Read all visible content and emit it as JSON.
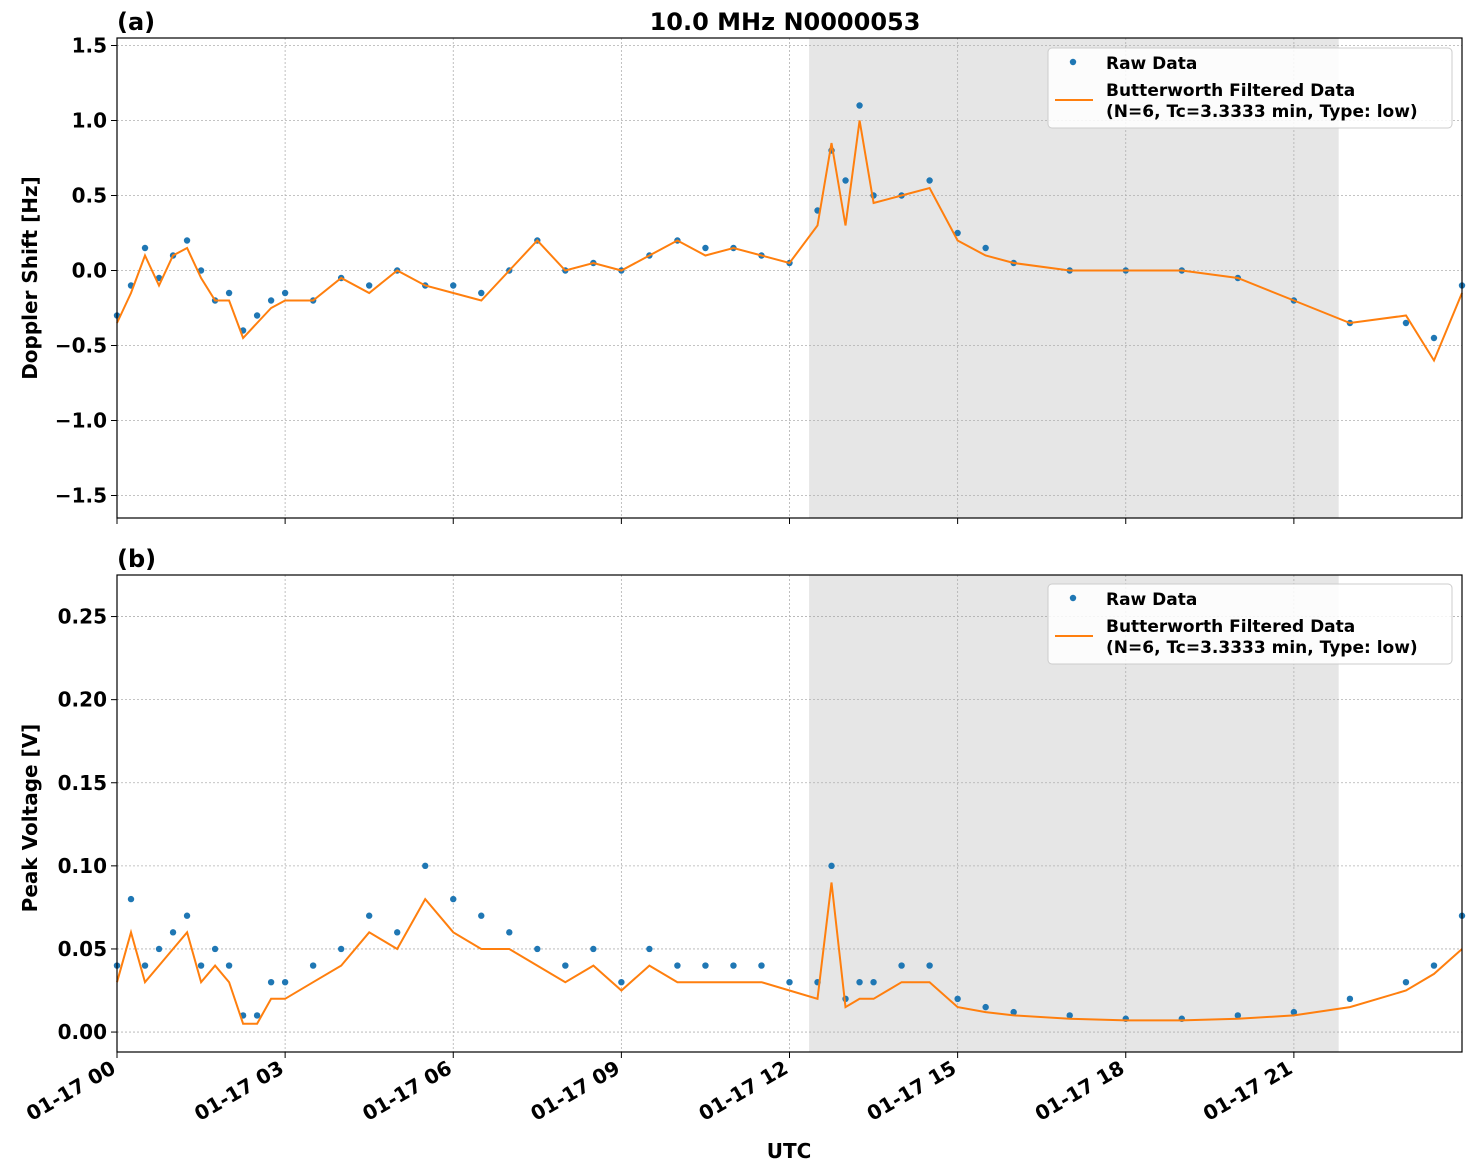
{
  "figure": {
    "title": "10.0 MHz N0000053",
    "xlabel": "UTC",
    "x_tick_labels": [
      "01-17 00",
      "01-17 03",
      "01-17 06",
      "01-17 09",
      "01-17 12",
      "01-17 15",
      "01-17 18",
      "01-17 21"
    ]
  },
  "panels": [
    {
      "label": "(a)",
      "ylabel": "Doppler Shift [Hz]",
      "y_tick_labels": [
        "1.5",
        "1.0",
        "0.5",
        "0.0",
        "−0.5",
        "−1.0",
        "−1.5"
      ],
      "legend": {
        "raw": "Raw Data",
        "filtered_line1": "Butterworth Filtered Data",
        "filtered_line2": "(N=6, Tc=3.3333 min, Type: low)"
      }
    },
    {
      "label": "(b)",
      "ylabel": "Peak Voltage [V]",
      "y_tick_labels": [
        "0.25",
        "0.20",
        "0.15",
        "0.10",
        "0.05",
        "0.00"
      ],
      "legend": {
        "raw": "Raw Data",
        "filtered_line1": "Butterworth Filtered Data",
        "filtered_line2": "(N=6, Tc=3.3333 min, Type: low)"
      }
    }
  ],
  "chart_data": [
    {
      "type": "scatter",
      "title": "10.0 MHz N0000053",
      "xlabel": "",
      "ylabel": "Doppler Shift [Hz]",
      "x_unit": "hours UTC on 01-17",
      "xlim": [
        0,
        24
      ],
      "ylim": [
        -1.65,
        1.55
      ],
      "grid": true,
      "legend_position": "top-right",
      "shaded_region_x": [
        12.35,
        21.8
      ],
      "series": [
        {
          "name": "Raw Data",
          "style": "points",
          "color": "#1f77b4",
          "x": [
            0,
            0.25,
            0.5,
            0.75,
            1.0,
            1.25,
            1.5,
            1.75,
            2.0,
            2.25,
            2.5,
            2.75,
            3.0,
            3.5,
            4.0,
            4.5,
            5.0,
            5.5,
            6.0,
            6.5,
            7.0,
            7.5,
            8.0,
            8.5,
            9.0,
            9.5,
            10.0,
            10.5,
            11.0,
            11.5,
            12.0,
            12.5,
            12.75,
            13.0,
            13.25,
            13.5,
            14.0,
            14.5,
            15.0,
            15.5,
            16.0,
            17.0,
            18.0,
            19.0,
            20.0,
            21.0,
            22.0,
            23.0,
            23.5,
            24.0
          ],
          "y": [
            -0.3,
            -0.1,
            0.15,
            -0.05,
            0.1,
            0.2,
            0.0,
            -0.2,
            -0.15,
            -0.4,
            -0.3,
            -0.2,
            -0.15,
            -0.2,
            -0.05,
            -0.1,
            0.0,
            -0.1,
            -0.1,
            -0.15,
            0.0,
            0.2,
            0.0,
            0.05,
            0.0,
            0.1,
            0.2,
            0.15,
            0.15,
            0.1,
            0.05,
            0.4,
            0.8,
            0.6,
            1.1,
            0.5,
            0.5,
            0.6,
            0.25,
            0.15,
            0.05,
            0.0,
            0.0,
            0.0,
            -0.05,
            -0.2,
            -0.35,
            -0.35,
            -0.45,
            -0.1
          ]
        },
        {
          "name": "Butterworth Filtered Data (N=6, Tc=3.3333 min, Type: low)",
          "style": "line",
          "color": "#ff7f0e",
          "x": [
            0,
            0.25,
            0.5,
            0.75,
            1.0,
            1.25,
            1.5,
            1.75,
            2.0,
            2.25,
            2.5,
            2.75,
            3.0,
            3.5,
            4.0,
            4.5,
            5.0,
            5.5,
            6.0,
            6.5,
            7.0,
            7.5,
            8.0,
            8.5,
            9.0,
            9.5,
            10.0,
            10.5,
            11.0,
            11.5,
            12.0,
            12.5,
            12.75,
            13.0,
            13.25,
            13.5,
            14.0,
            14.5,
            15.0,
            15.5,
            16.0,
            17.0,
            18.0,
            19.0,
            20.0,
            21.0,
            22.0,
            23.0,
            23.5,
            24.0
          ],
          "y": [
            -0.35,
            -0.15,
            0.1,
            -0.1,
            0.1,
            0.15,
            -0.05,
            -0.2,
            -0.2,
            -0.45,
            -0.35,
            -0.25,
            -0.2,
            -0.2,
            -0.05,
            -0.15,
            0.0,
            -0.1,
            -0.15,
            -0.2,
            0.0,
            0.2,
            0.0,
            0.05,
            0.0,
            0.1,
            0.2,
            0.1,
            0.15,
            0.1,
            0.05,
            0.3,
            0.85,
            0.3,
            1.0,
            0.45,
            0.5,
            0.55,
            0.2,
            0.1,
            0.05,
            0.0,
            0.0,
            0.0,
            -0.05,
            -0.2,
            -0.35,
            -0.3,
            -0.6,
            -0.15
          ]
        }
      ]
    },
    {
      "type": "scatter",
      "title": "",
      "xlabel": "UTC",
      "ylabel": "Peak Voltage [V]",
      "x_unit": "hours UTC on 01-17",
      "xlim": [
        0,
        24
      ],
      "ylim": [
        -0.012,
        0.275
      ],
      "grid": true,
      "legend_position": "top-right",
      "shaded_region_x": [
        12.35,
        21.8
      ],
      "series": [
        {
          "name": "Raw Data",
          "style": "points",
          "color": "#1f77b4",
          "x": [
            0,
            0.25,
            0.5,
            0.75,
            1.0,
            1.25,
            1.5,
            1.75,
            2.0,
            2.25,
            2.5,
            2.75,
            3.0,
            3.5,
            4.0,
            4.5,
            5.0,
            5.5,
            6.0,
            6.5,
            7.0,
            7.5,
            8.0,
            8.5,
            9.0,
            9.5,
            10.0,
            10.5,
            11.0,
            11.5,
            12.0,
            12.5,
            12.75,
            13.0,
            13.25,
            13.5,
            14.0,
            14.5,
            15.0,
            15.5,
            16.0,
            17.0,
            18.0,
            19.0,
            20.0,
            21.0,
            22.0,
            23.0,
            23.5,
            24.0
          ],
          "y": [
            0.04,
            0.08,
            0.04,
            0.05,
            0.06,
            0.07,
            0.04,
            0.05,
            0.04,
            0.01,
            0.01,
            0.03,
            0.03,
            0.04,
            0.05,
            0.07,
            0.06,
            0.1,
            0.08,
            0.07,
            0.06,
            0.05,
            0.04,
            0.05,
            0.03,
            0.05,
            0.04,
            0.04,
            0.04,
            0.04,
            0.03,
            0.03,
            0.1,
            0.02,
            0.03,
            0.03,
            0.04,
            0.04,
            0.02,
            0.015,
            0.012,
            0.01,
            0.008,
            0.008,
            0.01,
            0.012,
            0.02,
            0.03,
            0.04,
            0.07
          ]
        },
        {
          "name": "Butterworth Filtered Data (N=6, Tc=3.3333 min, Type: low)",
          "style": "line",
          "color": "#ff7f0e",
          "x": [
            0,
            0.25,
            0.5,
            0.75,
            1.0,
            1.25,
            1.5,
            1.75,
            2.0,
            2.25,
            2.5,
            2.75,
            3.0,
            3.5,
            4.0,
            4.5,
            5.0,
            5.5,
            6.0,
            6.5,
            7.0,
            7.5,
            8.0,
            8.5,
            9.0,
            9.5,
            10.0,
            10.5,
            11.0,
            11.5,
            12.0,
            12.5,
            12.75,
            13.0,
            13.25,
            13.5,
            14.0,
            14.5,
            15.0,
            15.5,
            16.0,
            17.0,
            18.0,
            19.0,
            20.0,
            21.0,
            22.0,
            23.0,
            23.5,
            24.0
          ],
          "y": [
            0.03,
            0.06,
            0.03,
            0.04,
            0.05,
            0.06,
            0.03,
            0.04,
            0.03,
            0.005,
            0.005,
            0.02,
            0.02,
            0.03,
            0.04,
            0.06,
            0.05,
            0.08,
            0.06,
            0.05,
            0.05,
            0.04,
            0.03,
            0.04,
            0.025,
            0.04,
            0.03,
            0.03,
            0.03,
            0.03,
            0.025,
            0.02,
            0.09,
            0.015,
            0.02,
            0.02,
            0.03,
            0.03,
            0.015,
            0.012,
            0.01,
            0.008,
            0.007,
            0.007,
            0.008,
            0.01,
            0.015,
            0.025,
            0.035,
            0.05
          ]
        }
      ]
    }
  ]
}
